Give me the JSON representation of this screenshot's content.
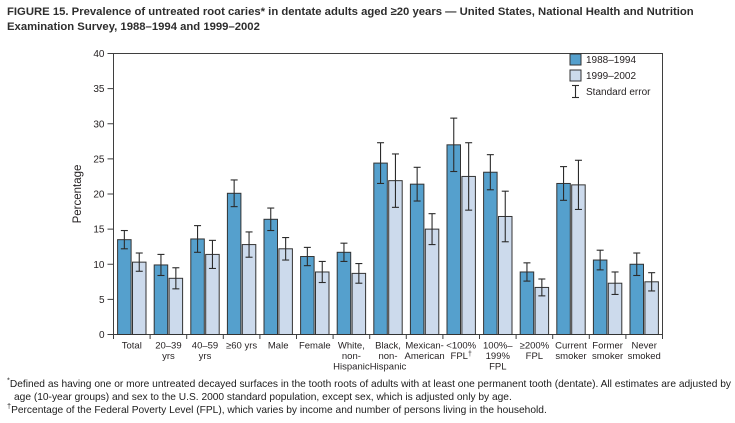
{
  "figure": {
    "title": "FIGURE 15. Prevalence of untreated root caries* in dentate adults aged ≥20 years — United States, National Health and Nutrition Examination Survey, 1988–1994 and 1999–2002"
  },
  "chart_data": {
    "type": "bar",
    "title": "FIGURE 15. Prevalence of untreated root caries in dentate adults aged ≥20 years, 1988–1994 and 1999–2002",
    "ylabel": "Percentage",
    "xlabel": "",
    "ylim": [
      0,
      40
    ],
    "ytick_step": 5,
    "yticks": [
      0,
      5,
      10,
      15,
      20,
      25,
      30,
      35,
      40
    ],
    "grid": false,
    "legend_position": "top-right-inside",
    "legend_error_label": "Standard error",
    "error_bars": "standard error",
    "categories": [
      "Total",
      "20–39 yrs",
      "40–59 yrs",
      "≥60 yrs",
      "Male",
      "Female",
      "White, non-Hispanic",
      "Black, non-Hispanic",
      "Mexican-American",
      "<100% FPL†",
      "100%–199% FPL",
      "≥200% FPL",
      "Current smoker",
      "Former smoker",
      "Never smoked"
    ],
    "category_label_lines": [
      [
        "Total"
      ],
      [
        "20–39",
        "yrs"
      ],
      [
        "40–59",
        "yrs"
      ],
      [
        "≥60 yrs"
      ],
      [
        "Male"
      ],
      [
        "Female"
      ],
      [
        "White,",
        "non-",
        "Hispanic"
      ],
      [
        "Black,",
        "non-",
        "Hispanic"
      ],
      [
        "Mexican-",
        "American"
      ],
      [
        "<100%",
        "FPL†"
      ],
      [
        "100%–",
        "199%",
        "FPL"
      ],
      [
        "≥200%",
        "FPL"
      ],
      [
        "Current",
        "smoker"
      ],
      [
        "Former",
        "smoker"
      ],
      [
        "Never",
        "smoked"
      ]
    ],
    "series": [
      {
        "name": "1988–1994",
        "color": "#55a0cd",
        "values": [
          13.5,
          9.9,
          13.6,
          20.1,
          16.4,
          11.1,
          11.7,
          24.4,
          21.4,
          27.0,
          23.1,
          8.9,
          21.5,
          10.6,
          10.0
        ],
        "stderr": [
          1.3,
          1.5,
          1.9,
          1.9,
          1.6,
          1.3,
          1.3,
          2.9,
          2.4,
          3.8,
          2.5,
          1.3,
          2.4,
          1.4,
          1.6
        ]
      },
      {
        "name": "1999–2002",
        "color": "#ccdaec",
        "values": [
          10.3,
          8.0,
          11.4,
          12.8,
          12.2,
          8.9,
          8.7,
          21.9,
          15.0,
          22.5,
          16.8,
          6.7,
          21.3,
          7.3,
          7.5
        ],
        "stderr": [
          1.3,
          1.5,
          2.0,
          1.8,
          1.6,
          1.5,
          1.4,
          3.8,
          2.2,
          4.8,
          3.6,
          1.2,
          3.5,
          1.6,
          1.3
        ]
      }
    ]
  },
  "footnotes": [
    {
      "marker": "*",
      "text": "Defined as having one or more untreated decayed surfaces in the tooth roots of adults with at least one permanent tooth (dentate). All estimates are adjusted by age (10-year groups) and sex to the U.S. 2000 standard population, except sex, which is adjusted only by age."
    },
    {
      "marker": "†",
      "text": "Percentage of the Federal Poverty Level (FPL), which varies by income and number of persons living in the household."
    }
  ],
  "colors": {
    "series_1988_1994": "#55a0cd",
    "series_1999_2002": "#ccdaec",
    "bar_stroke": "#333333",
    "error_bar": "#2b2b2b",
    "axis": "#3f3f3f",
    "text": "#231f20"
  }
}
